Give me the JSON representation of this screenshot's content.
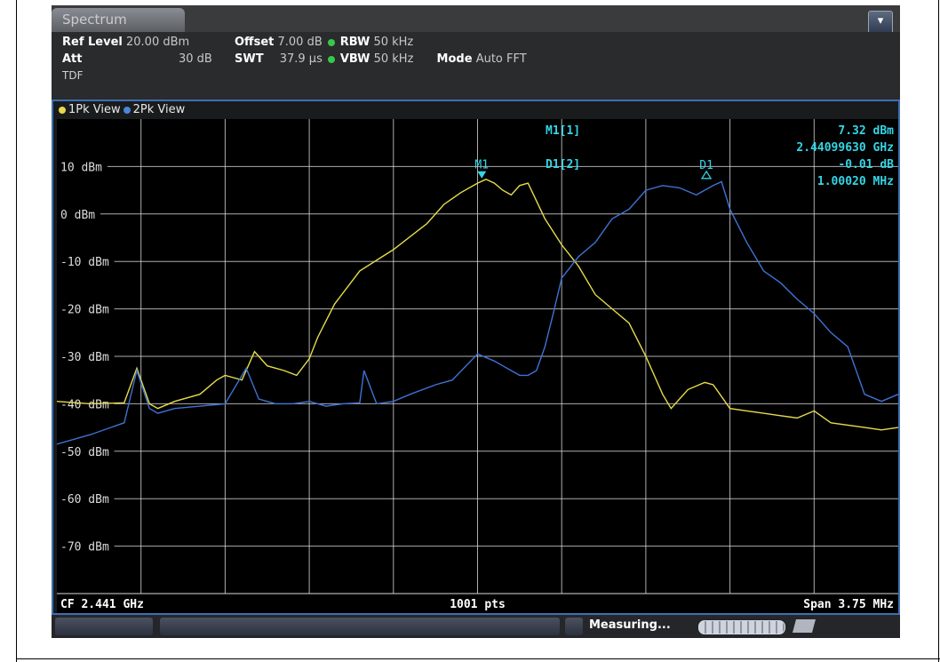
{
  "app": {
    "tab_label": "Spectrum",
    "menu_icon": "overflow-menu-icon"
  },
  "header": {
    "ref_level_label": "Ref Level",
    "ref_level_value": "20.00 dBm",
    "offset_label": "Offset",
    "offset_value": "7.00 dB",
    "rbw_label": "RBW",
    "rbw_value": "50 kHz",
    "att_label": "Att",
    "att_value": "30 dB",
    "swt_label": "SWT",
    "swt_value": "37.9 µs",
    "vbw_label": "VBW",
    "vbw_value": "50 kHz",
    "mode_label": "Mode",
    "mode_value": "Auto FFT",
    "tdf_label": "TDF",
    "status_dot_color": "#38c84b"
  },
  "legend": {
    "trace1": "1Pk View",
    "trace2": "2Pk View"
  },
  "markers": {
    "m1_label": "M1[1]",
    "m1_level": "7.32 dBm",
    "m1_freq": "2.44099630 GHz",
    "d1_label": "D1[2]",
    "d1_level": "-0.01 dB",
    "d1_freq": "1.00020 MHz",
    "m1_tag": "M1",
    "d1_tag": "D1"
  },
  "footer": {
    "cf": "CF 2.441 GHz",
    "points": "1001 pts",
    "span": "Span 3.75 MHz",
    "status": "Measuring..."
  },
  "colors": {
    "trace1": "#e6dc4a",
    "trace2": "#3f72d6",
    "marker": "#35d5e6",
    "grid": "#d8d8d8"
  },
  "chart_data": {
    "type": "line",
    "ylim": [
      -80,
      20
    ],
    "ylabel": "",
    "xlabel": "",
    "y_ticks": [
      "10 dBm",
      "0 dBm",
      "-10 dBm",
      "-20 dBm",
      "-30 dBm",
      "-40 dBm",
      "-50 dBm",
      "-60 dBm",
      "-70 dBm"
    ],
    "y_tick_values": [
      10,
      0,
      -10,
      -20,
      -30,
      -40,
      -50,
      -60,
      -70
    ],
    "x_divisions": 10,
    "series": [
      {
        "name": "1Pk View",
        "x": [
          0,
          4,
          8,
          9.5,
          11,
          12,
          14,
          17,
          19,
          20,
          22,
          23.5,
          25,
          27,
          28.5,
          30,
          31,
          33,
          36,
          40,
          44,
          46,
          48,
          50,
          51,
          52,
          53,
          54,
          55,
          56,
          58,
          60,
          62,
          64,
          66,
          68,
          70,
          72,
          73,
          75,
          77,
          78,
          80,
          82,
          84,
          86,
          88,
          90,
          92,
          94,
          96,
          98,
          100
        ],
        "values": [
          -39.5,
          -40,
          -39.8,
          -32.5,
          -40,
          -41,
          -39.5,
          -38,
          -35,
          -34,
          -35,
          -29,
          -32,
          -33,
          -34,
          -30.5,
          -26,
          -19,
          -12,
          -7.5,
          -2,
          2,
          4.5,
          6.5,
          7.3,
          6.5,
          5,
          4,
          6,
          6.5,
          -1,
          -6.5,
          -11,
          -17,
          -20,
          -23,
          -30,
          -38,
          -41,
          -37,
          -35.5,
          -36,
          -41,
          -41.5,
          -42,
          -42.5,
          -43,
          -41.5,
          -44,
          -44.5,
          -45,
          -45.5,
          -45
        ]
      },
      {
        "name": "2Pk View",
        "x": [
          0,
          4,
          8,
          9.5,
          11,
          12,
          14,
          17,
          20,
          22.5,
          24,
          26,
          28,
          30,
          32,
          34,
          36,
          36.5,
          38,
          40,
          42,
          45,
          47,
          50,
          52,
          53,
          55,
          56,
          57,
          58,
          59,
          60,
          62,
          64,
          66,
          68,
          70,
          72,
          74,
          76,
          78,
          79,
          80,
          82,
          84,
          86,
          88,
          90,
          92,
          94,
          96,
          98,
          100
        ],
        "values": [
          -48.5,
          -46.5,
          -44,
          -33,
          -41,
          -42,
          -41,
          -40.5,
          -40,
          -32.5,
          -39,
          -40,
          -40,
          -39.5,
          -40.5,
          -40,
          -39.8,
          -33,
          -40,
          -39.5,
          -38,
          -36,
          -35,
          -29.5,
          -31,
          -32,
          -34,
          -34,
          -33,
          -28,
          -21,
          -13.5,
          -9,
          -6,
          -1,
          1,
          5,
          6,
          5.5,
          4,
          6,
          6.8,
          1,
          -6,
          -12,
          -14.5,
          -18,
          -21,
          -25,
          -28,
          -38,
          -39.5,
          -38
        ]
      }
    ],
    "markers": [
      {
        "name": "M1",
        "x": 50.5,
        "y": 7.32
      },
      {
        "name": "D1",
        "x": 77.2,
        "y": 7.3
      }
    ]
  }
}
